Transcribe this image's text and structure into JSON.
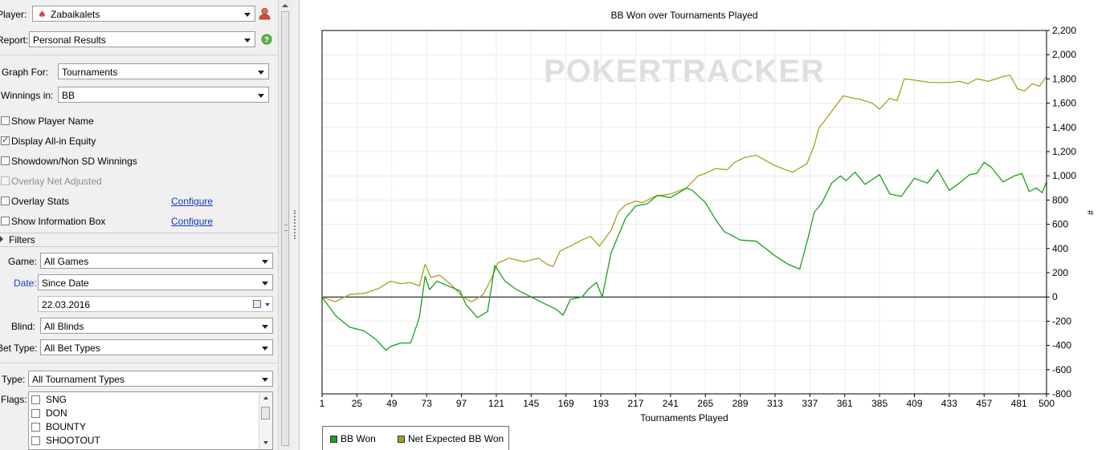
{
  "player": {
    "label": "Player:",
    "value": "Zabaikalets"
  },
  "report": {
    "label": "Report:",
    "value": "Personal Results"
  },
  "graph_for": {
    "label": "Graph For:",
    "value": "Tournaments"
  },
  "winnings_in": {
    "label": "Winnings in:",
    "value": "BB"
  },
  "options": [
    {
      "label": "Show Player Name",
      "checked": false,
      "disabled": false
    },
    {
      "label": "Display All-in Equity",
      "checked": true,
      "disabled": false
    },
    {
      "label": "Showdown/Non SD Winnings",
      "checked": false,
      "disabled": false
    },
    {
      "label": "Overlay Net Adjusted",
      "checked": false,
      "disabled": true
    },
    {
      "label": "Overlay Stats",
      "checked": false,
      "disabled": false
    },
    {
      "label": "Show Information Box",
      "checked": false,
      "disabled": false
    }
  ],
  "configure_link": "Configure",
  "filters": {
    "header": "Filters",
    "game": {
      "label": "Game:",
      "value": "All Games"
    },
    "date": {
      "label": "Date:",
      "value": "Since Date",
      "date_value": "22.03.2016"
    },
    "blind": {
      "label": "Blind:",
      "value": "All Blinds"
    },
    "bet_type": {
      "label": "Bet Type:",
      "value": "All Bet Types"
    },
    "type": {
      "label": "Type:",
      "value": "All Tournament Types"
    },
    "flags": {
      "label": "Flags:",
      "items": [
        "SNG",
        "DON",
        "BOUNTY",
        "SHOOTOUT"
      ]
    }
  },
  "colors": {
    "bb_won": "#1e9e1e",
    "net_expected": "#a8a020",
    "link": "#0b39b8",
    "date_label": "#1a3fbf"
  },
  "chart_data": {
    "type": "line",
    "title": "BB Won over Tournaments Played",
    "xlabel": "Tournaments Played",
    "ylabel": "#",
    "watermark": "POKERTRACKER",
    "xlim": [
      1,
      500
    ],
    "ylim": [
      -800,
      2200
    ],
    "x_ticks": [
      1,
      25,
      49,
      73,
      97,
      121,
      145,
      169,
      193,
      217,
      241,
      265,
      289,
      313,
      337,
      361,
      385,
      409,
      433,
      457,
      481,
      500
    ],
    "y_ticks": [
      2200,
      2000,
      1800,
      1600,
      1400,
      1200,
      1000,
      800,
      600,
      400,
      200,
      0,
      -200,
      -400,
      -600,
      -800
    ],
    "y_tick_labels": [
      "2,200",
      "2,000",
      "1,800",
      "1,600",
      "1,400",
      "1,200",
      "1,000",
      "800",
      "600",
      "400",
      "200",
      "0",
      "-200",
      "-400",
      "-600",
      "-800"
    ],
    "grid": true,
    "legend": "bottom-left",
    "series": [
      {
        "name": "BB Won",
        "x": [
          1,
          10,
          20,
          30,
          38,
          45,
          48,
          55,
          62,
          68,
          72,
          75,
          80,
          88,
          96,
          100,
          108,
          115,
          120,
          127,
          135,
          145,
          155,
          162,
          167,
          172,
          180,
          185,
          190,
          194,
          200,
          210,
          217,
          225,
          232,
          241,
          248,
          252,
          256,
          265,
          272,
          278,
          289,
          300,
          313,
          322,
          330,
          336,
          340,
          345,
          352,
          358,
          362,
          368,
          375,
          385,
          392,
          400,
          409,
          418,
          425,
          433,
          440,
          447,
          452,
          457,
          462,
          470,
          478,
          483,
          488,
          493,
          497,
          500
        ],
        "y": [
          0,
          -150,
          -250,
          -280,
          -350,
          -440,
          -410,
          -380,
          -380,
          -170,
          170,
          60,
          130,
          90,
          50,
          -60,
          -170,
          -120,
          260,
          130,
          60,
          0,
          -60,
          -100,
          -150,
          -20,
          0,
          70,
          120,
          0,
          360,
          650,
          750,
          770,
          840,
          820,
          870,
          900,
          880,
          780,
          640,
          540,
          470,
          460,
          340,
          270,
          230,
          500,
          700,
          770,
          940,
          1000,
          960,
          1030,
          930,
          1010,
          850,
          830,
          980,
          940,
          1050,
          880,
          940,
          1010,
          1020,
          1110,
          1070,
          950,
          1000,
          1020,
          870,
          900,
          860,
          950
        ]
      },
      {
        "name": "Net Expected BB Won",
        "x": [
          1,
          10,
          20,
          30,
          40,
          48,
          55,
          62,
          68,
          72,
          76,
          82,
          90,
          98,
          104,
          112,
          118,
          122,
          130,
          140,
          150,
          156,
          160,
          165,
          172,
          180,
          186,
          192,
          200,
          205,
          210,
          217,
          222,
          230,
          241,
          252,
          260,
          265,
          272,
          280,
          285,
          292,
          300,
          312,
          318,
          325,
          335,
          340,
          343,
          350,
          360,
          372,
          380,
          385,
          392,
          397,
          402,
          409,
          420,
          433,
          440,
          446,
          452,
          460,
          470,
          475,
          480,
          485,
          490,
          495,
          500
        ],
        "y": [
          0,
          -40,
          20,
          30,
          70,
          130,
          110,
          120,
          90,
          270,
          160,
          180,
          100,
          0,
          -40,
          20,
          160,
          280,
          320,
          290,
          320,
          270,
          250,
          380,
          420,
          470,
          500,
          420,
          550,
          700,
          760,
          790,
          780,
          830,
          850,
          900,
          1000,
          1020,
          1060,
          1050,
          1110,
          1150,
          1170,
          1090,
          1060,
          1030,
          1100,
          1250,
          1390,
          1500,
          1660,
          1630,
          1600,
          1550,
          1640,
          1620,
          1800,
          1790,
          1770,
          1770,
          1780,
          1760,
          1800,
          1780,
          1820,
          1830,
          1720,
          1700,
          1760,
          1740,
          1820
        ]
      }
    ]
  }
}
